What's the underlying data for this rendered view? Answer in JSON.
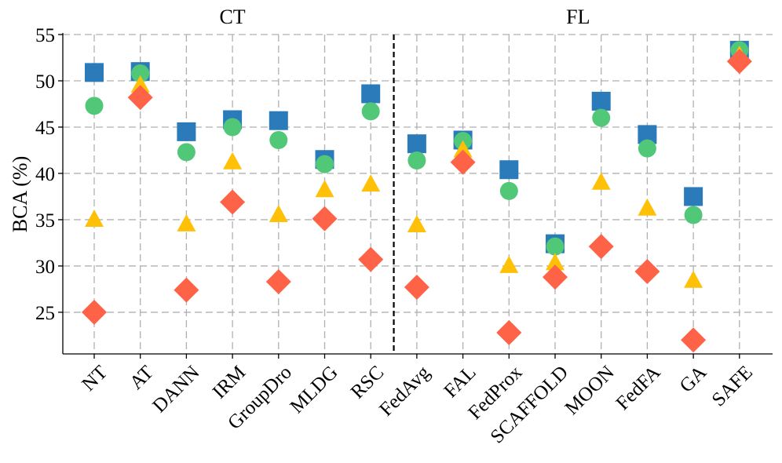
{
  "chart_data": {
    "type": "scatter",
    "title": "",
    "xlabel": "",
    "ylabel": "BCA (%)",
    "ylim": [
      20.5,
      55
    ],
    "yticks": [
      25,
      30,
      35,
      40,
      45,
      50,
      55
    ],
    "grid": true,
    "categories": [
      "NT",
      "AT",
      "DANN",
      "IRM",
      "GroupDro",
      "MLDG",
      "RSC",
      "FedAvg",
      "FAL",
      "FedProx",
      "SCAFFOLD",
      "MOON",
      "FedFA",
      "GA",
      "SAFE"
    ],
    "groups": [
      {
        "label": "CT",
        "start": 0,
        "end": 6
      },
      {
        "label": "FL",
        "start": 7,
        "end": 14
      }
    ],
    "divider_after_index": 6,
    "series": [
      {
        "name": "square",
        "marker": "square",
        "color": "#2b7bba",
        "values": [
          50.9,
          51.0,
          44.5,
          45.8,
          45.7,
          41.5,
          48.6,
          43.2,
          43.6,
          40.4,
          32.4,
          47.8,
          44.2,
          37.5,
          53.3
        ]
      },
      {
        "name": "circle",
        "marker": "circle",
        "color": "#50c878",
        "values": [
          47.3,
          50.8,
          42.3,
          45.0,
          43.6,
          41.0,
          46.7,
          41.4,
          43.5,
          38.1,
          32.1,
          46.0,
          42.7,
          35.5,
          53.3
        ]
      },
      {
        "name": "triangle",
        "marker": "triangle",
        "color": "#ffc107",
        "values": [
          35.0,
          49.5,
          34.5,
          41.2,
          35.5,
          38.2,
          38.8,
          34.4,
          42.5,
          30.0,
          30.3,
          39.0,
          36.2,
          28.4,
          52.7
        ]
      },
      {
        "name": "diamond",
        "marker": "diamond",
        "color": "#ff6347",
        "values": [
          25.0,
          48.2,
          27.4,
          36.9,
          28.3,
          35.1,
          30.7,
          27.7,
          41.2,
          22.8,
          28.8,
          32.1,
          29.4,
          22.0,
          52.1
        ]
      }
    ]
  }
}
